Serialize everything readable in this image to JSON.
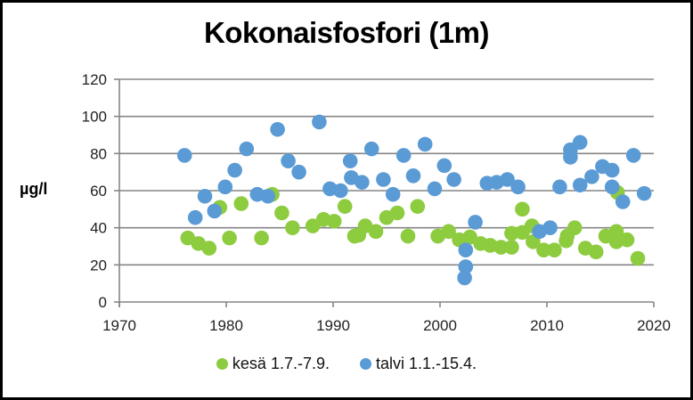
{
  "chart_data": {
    "type": "scatter",
    "title": "Kokonaisfosfori (1m)",
    "xlabel": "",
    "ylabel": "µg/l",
    "xlim": [
      1970,
      2020
    ],
    "ylim": [
      0,
      120
    ],
    "x_ticks": [
      1970,
      1980,
      1990,
      2000,
      2010,
      2020
    ],
    "y_ticks": [
      0,
      20,
      40,
      60,
      80,
      100,
      120
    ],
    "grid": "horizontal",
    "legend_position": "bottom",
    "series": [
      {
        "name": "kesä 1.7.-7.9.",
        "color": "#8DCB3F",
        "points": [
          [
            1976.4,
            34.5
          ],
          [
            1977.4,
            31.5
          ],
          [
            1978.4,
            29
          ],
          [
            1979.4,
            51
          ],
          [
            1980.3,
            34.5
          ],
          [
            1981.4,
            53
          ],
          [
            1983.3,
            34.5
          ],
          [
            1984.3,
            58
          ],
          [
            1985.2,
            48
          ],
          [
            1986.2,
            40
          ],
          [
            1988.1,
            41
          ],
          [
            1989.1,
            44.5
          ],
          [
            1990.1,
            43.5
          ],
          [
            1991.1,
            51.5
          ],
          [
            1992.0,
            35.5
          ],
          [
            1992.4,
            36
          ],
          [
            1993.0,
            41
          ],
          [
            1994.0,
            38
          ],
          [
            1995.0,
            45.5
          ],
          [
            1996.0,
            48
          ],
          [
            1997.0,
            35.5
          ],
          [
            1997.9,
            51.5
          ],
          [
            1999.8,
            35.5
          ],
          [
            2000.8,
            38
          ],
          [
            2001.8,
            33.5
          ],
          [
            2002.8,
            35
          ],
          [
            2003.8,
            31.5
          ],
          [
            2004.7,
            30.5
          ],
          [
            2005.7,
            29.5
          ],
          [
            2006.7,
            29.5
          ],
          [
            2006.7,
            37
          ],
          [
            2007.7,
            37.5
          ],
          [
            2007.7,
            50
          ],
          [
            2008.6,
            41
          ],
          [
            2008.7,
            32.5
          ],
          [
            2009.7,
            28
          ],
          [
            2010.7,
            28
          ],
          [
            2011.8,
            33
          ],
          [
            2011.9,
            35.5
          ],
          [
            2012.6,
            40
          ],
          [
            2013.6,
            29
          ],
          [
            2014.6,
            27
          ],
          [
            2015.5,
            35.5
          ],
          [
            2016.5,
            38
          ],
          [
            2016.5,
            32.5
          ],
          [
            2016.6,
            59
          ],
          [
            2017.5,
            33.5
          ],
          [
            2018.5,
            23.5
          ]
        ]
      },
      {
        "name": "talvi 1.1.-15.4.",
        "color": "#5B9BD5",
        "points": [
          [
            1976.1,
            79
          ],
          [
            1977.1,
            45.5
          ],
          [
            1978.0,
            57
          ],
          [
            1978.9,
            49
          ],
          [
            1979.9,
            62
          ],
          [
            1980.8,
            71
          ],
          [
            1981.9,
            82.5
          ],
          [
            1982.9,
            58
          ],
          [
            1983.9,
            57
          ],
          [
            1984.8,
            93
          ],
          [
            1985.8,
            76
          ],
          [
            1986.8,
            70
          ],
          [
            1988.7,
            97
          ],
          [
            1989.7,
            61
          ],
          [
            1990.7,
            60
          ],
          [
            1991.6,
            76
          ],
          [
            1991.7,
            67
          ],
          [
            1992.7,
            64.5
          ],
          [
            1993.6,
            82.5
          ],
          [
            1994.7,
            66
          ],
          [
            1995.6,
            58
          ],
          [
            1996.6,
            79
          ],
          [
            1997.5,
            68
          ],
          [
            1998.6,
            85
          ],
          [
            1999.5,
            61
          ],
          [
            2000.4,
            73.5
          ],
          [
            2001.3,
            66
          ],
          [
            2002.3,
            13
          ],
          [
            2002.4,
            19
          ],
          [
            2002.4,
            28
          ],
          [
            2003.3,
            43
          ],
          [
            2004.4,
            64
          ],
          [
            2005.3,
            64.5
          ],
          [
            2006.3,
            66
          ],
          [
            2007.3,
            62
          ],
          [
            2009.3,
            38
          ],
          [
            2010.3,
            40
          ],
          [
            2011.2,
            62
          ],
          [
            2012.2,
            78
          ],
          [
            2012.2,
            82
          ],
          [
            2013.1,
            86
          ],
          [
            2013.1,
            63
          ],
          [
            2014.2,
            67.5
          ],
          [
            2015.2,
            73
          ],
          [
            2016.1,
            71
          ],
          [
            2016.1,
            62
          ],
          [
            2017.1,
            54
          ],
          [
            2018.1,
            79
          ],
          [
            2019.1,
            58.5
          ]
        ]
      }
    ]
  },
  "legend": {
    "items": [
      {
        "label": "kesä 1.7.-7.9.",
        "color": "#8DCB3F"
      },
      {
        "label": "talvi 1.1.-15.4.",
        "color": "#5B9BD5"
      }
    ]
  }
}
